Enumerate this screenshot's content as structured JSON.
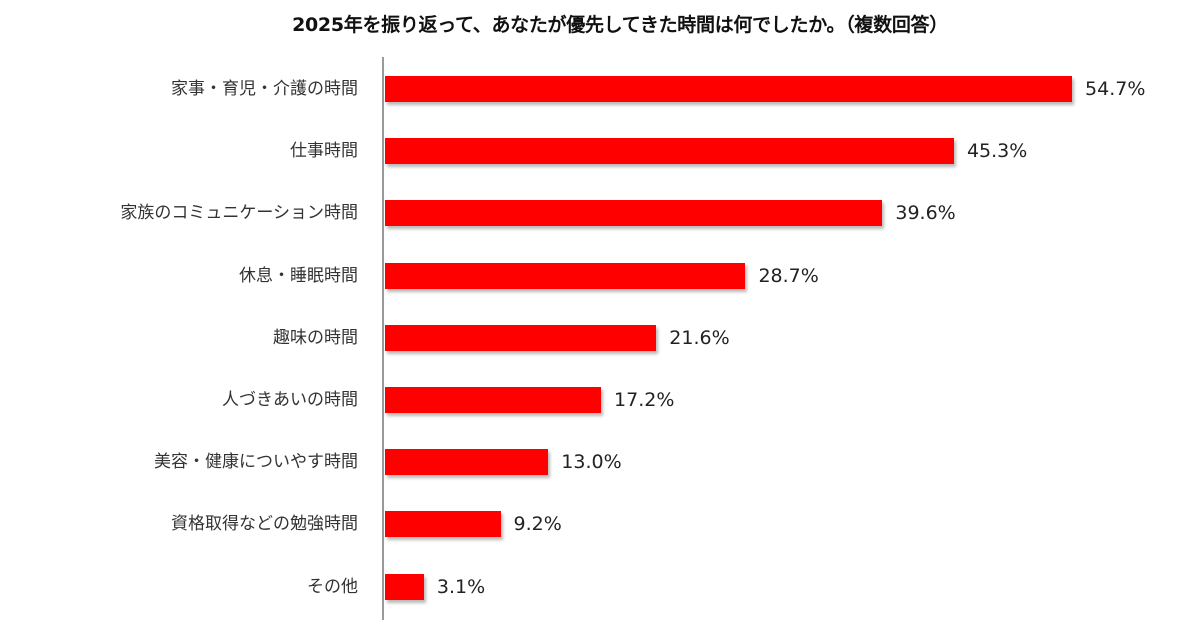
{
  "chart_data": {
    "type": "bar",
    "orientation": "horizontal",
    "title": "2025年を振り返って、あなたが優先してきた時間は何でしたか。（複数回答）",
    "xlabel": "",
    "ylabel": "",
    "unit": "%",
    "grid": false,
    "legend": null,
    "categories": [
      "家事・育児・介護の時間",
      "仕事時間",
      "家族のコミュニケーション時間",
      "休息・睡眠時間",
      "趣味の時間",
      "人づきあいの時間",
      "美容・健康についやす時間",
      "資格取得などの勉強時間",
      "その他"
    ],
    "values": [
      54.7,
      45.3,
      39.6,
      28.7,
      21.6,
      17.2,
      13.0,
      9.2,
      3.1
    ],
    "value_labels": [
      "54.7%",
      "45.3%",
      "39.6%",
      "28.7%",
      "21.6%",
      "17.2%",
      "13.0%",
      "9.2%",
      "3.1%"
    ],
    "bar_color": "#ff0000"
  }
}
